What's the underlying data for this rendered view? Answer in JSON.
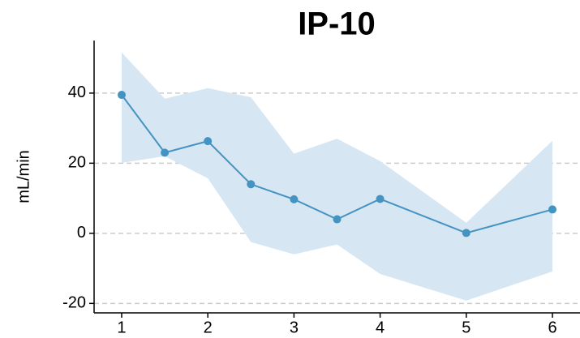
{
  "chart_data": {
    "type": "line",
    "title": "IP-10",
    "y_label": "mL/min",
    "x": [
      1,
      1.5,
      2,
      2.5,
      3,
      3.5,
      4,
      5,
      6
    ],
    "values": [
      39.5,
      23,
      26.3,
      14,
      9.7,
      4,
      9.8,
      0.1,
      6.8
    ],
    "band_upper": [
      51.6,
      38.4,
      41.4,
      38.8,
      22.7,
      27,
      20.6,
      3,
      26.4
    ],
    "band_lower": [
      20.1,
      22,
      15.7,
      -2.5,
      -6,
      -3.2,
      -11.6,
      -19.2,
      -10.9
    ],
    "color": "#4393c3",
    "band_color": "#d6e6f2",
    "xlim": [
      0.68,
      6.32
    ],
    "xticks": [
      1,
      2,
      3,
      4,
      5,
      6
    ],
    "ylim": [
      -22.7,
      55
    ],
    "yticks": [
      -20,
      0,
      20,
      40
    ],
    "grid": true
  }
}
